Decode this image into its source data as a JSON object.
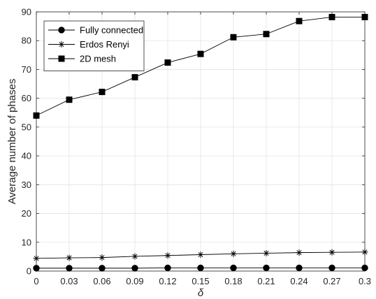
{
  "chart_data": {
    "type": "line",
    "title": "",
    "xlabel": "δ",
    "ylabel": "Average number of phases",
    "x": [
      0,
      0.03,
      0.06,
      0.09,
      0.12,
      0.15,
      0.18,
      0.21,
      0.24,
      0.27,
      0.3
    ],
    "x_tick_labels": [
      "0",
      "0.03",
      "0.06",
      "0.09",
      "0.12",
      "0.15",
      "0.18",
      "0.21",
      "0.24",
      "0.27",
      "0.3"
    ],
    "xlim": [
      0,
      0.3
    ],
    "ylim": [
      0,
      90
    ],
    "y_ticks": [
      0,
      10,
      20,
      30,
      40,
      50,
      60,
      70,
      80,
      90
    ],
    "grid": true,
    "legend_position": "top-left",
    "series": [
      {
        "name": "Fully connected",
        "marker": "circle",
        "values": [
          1.0,
          1.0,
          1.0,
          1.0,
          1.1,
          1.1,
          1.1,
          1.1,
          1.1,
          1.1,
          1.1
        ]
      },
      {
        "name": "Erdos Renyi",
        "marker": "asterisk",
        "values": [
          4.4,
          4.6,
          4.7,
          5.1,
          5.4,
          5.7,
          6.0,
          6.2,
          6.4,
          6.5,
          6.6
        ]
      },
      {
        "name": "2D mesh",
        "marker": "square",
        "values": [
          54.0,
          59.5,
          62.2,
          67.3,
          72.4,
          75.4,
          81.2,
          82.3,
          86.8,
          88.2,
          88.2
        ]
      }
    ],
    "colors": {
      "line": "#000000",
      "grid": "#e3e3e3",
      "axis": "#262626"
    }
  }
}
